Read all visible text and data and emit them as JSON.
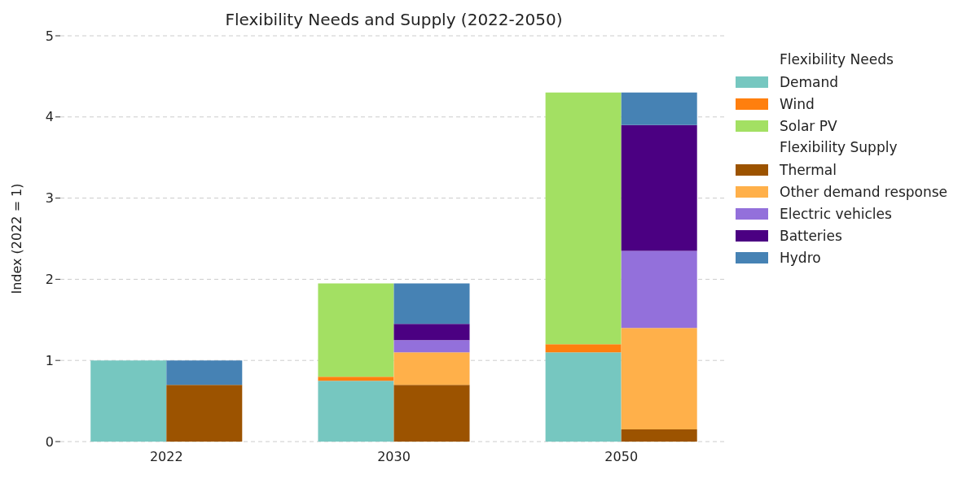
{
  "chart_data": {
    "type": "bar",
    "title": "Flexibility Needs and Supply (2022-2050)",
    "ylabel": "Index (2022 = 1)",
    "categories": [
      "2022",
      null,
      null,
      "2030",
      null,
      null,
      "2050",
      null
    ],
    "stacked": true,
    "legend_title": [
      "Flexibility Needs",
      "Flexibility Supply"
    ],
    "series": [
      {
        "name": "Demand",
        "color": "#76c7c0",
        "values": [
          1.0,
          null,
          null,
          0.75,
          null,
          null,
          1.1,
          null
        ]
      },
      {
        "name": "Wind",
        "color": "#ff7f0e",
        "values": [
          0,
          null,
          null,
          0.05,
          null,
          null,
          0.1,
          null
        ]
      },
      {
        "name": "Solar PV",
        "color": "#a3e063",
        "values": [
          0,
          null,
          null,
          1.15,
          null,
          null,
          3.1,
          null
        ]
      },
      {
        "name": "Thermal",
        "color": "#9c5300",
        "values": [
          null,
          0.7,
          null,
          null,
          0.7,
          null,
          null,
          0.15
        ]
      },
      {
        "name": "Other demand response",
        "color": "#ffb04a",
        "values": [
          null,
          0,
          null,
          null,
          0.4,
          null,
          null,
          1.25
        ]
      },
      {
        "name": "Electric vehicles",
        "color": "#9370db",
        "values": [
          null,
          0,
          null,
          null,
          0.15,
          null,
          null,
          0.95
        ]
      },
      {
        "name": "Batteries",
        "color": "#4b0082",
        "values": [
          null,
          0,
          null,
          null,
          0.2,
          null,
          null,
          1.55
        ]
      },
      {
        "name": "Hydro",
        "color": "#4682b4",
        "values": [
          null,
          0.3,
          null,
          null,
          0.5,
          null,
          null,
          0.4
        ]
      }
    ],
    "ylim": [
      0,
      5
    ],
    "yticks": [
      0,
      1,
      2,
      3,
      4,
      5
    ],
    "grid": "y",
    "legend": "right"
  }
}
